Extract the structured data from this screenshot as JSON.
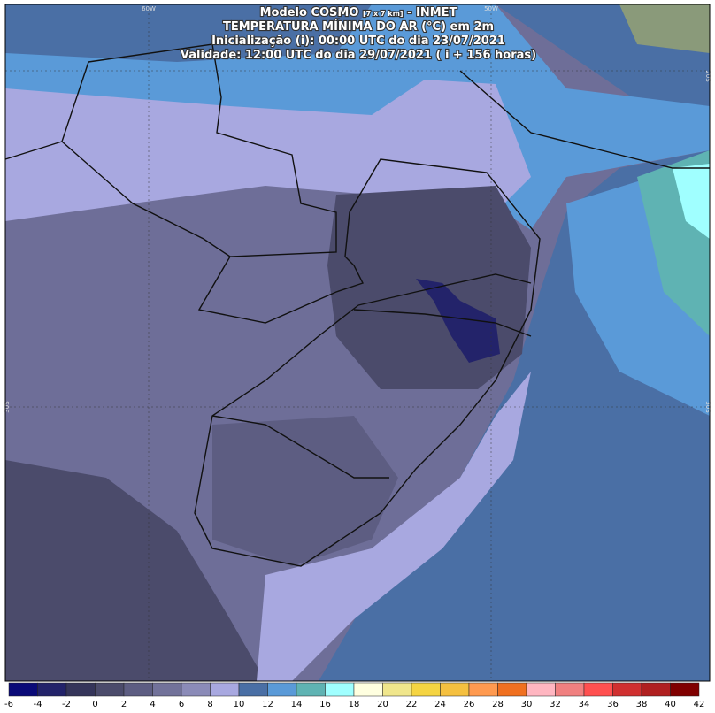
{
  "header": {
    "title_main": "Modelo COSMO",
    "title_res": "[7 x 7 km]",
    "title_org": "- INMET",
    "line2": "TEMPERATURA MÍNIMA DO AR (°C) em 2m",
    "line3": "Inicialização (i): 00:00 UTC do dia 23/07/2021",
    "line4": "Validade: 12:00 UTC do dia 29/07/2021 ( i + 156 horas)"
  },
  "map": {
    "lon_labels": [
      "60W",
      "50W"
    ],
    "lat_labels": [
      "20S",
      "30S"
    ]
  },
  "colorbar": {
    "labels": [
      -6,
      -4,
      -2,
      0,
      2,
      4,
      6,
      8,
      10,
      12,
      14,
      16,
      18,
      20,
      22,
      24,
      26,
      28,
      30,
      32,
      34,
      36,
      38,
      40,
      42
    ],
    "colors": [
      "#0a0a78",
      "#23236a",
      "#35355a",
      "#4b4b6b",
      "#5d5d82",
      "#72729a",
      "#8b8bb8",
      "#a8a8e0",
      "#4a6fa5",
      "#5a9ad8",
      "#5fb3b3",
      "#a0ffff",
      "#ffffe0",
      "#f0e68c",
      "#f5d442",
      "#f5c040",
      "#ff9a50",
      "#f07020",
      "#ffb6c1",
      "#f08080",
      "#ff5050",
      "#d03030",
      "#b02020",
      "#800000"
    ]
  }
}
